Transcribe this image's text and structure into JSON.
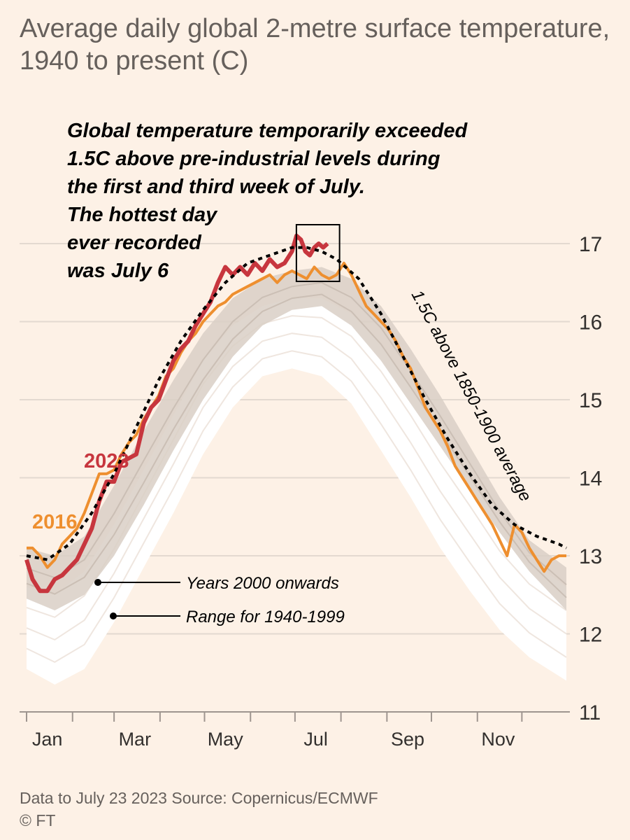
{
  "title": "Average daily global 2-metre surface temperature, 1940 to present (C)",
  "footer": {
    "source": "Data to July 23 2023   Source: Copernicus/ECMWF",
    "copyright": "© FT"
  },
  "colors": {
    "background": "#fdf1e6",
    "band_1940_1999": "#ffffff",
    "years_2000_onwards": "#d9cfc6",
    "series_2023": "#c7363e",
    "series_2016": "#ee8f2f",
    "threshold_line": "#000000",
    "gridline": "#e3d9d0"
  },
  "chart_data": {
    "type": "line",
    "title": "Average daily global 2-metre surface temperature, 1940 to present (C)",
    "ylabel": "",
    "xlabel": "",
    "ylim": [
      11,
      17.3
    ],
    "xlim_day_of_year": [
      1,
      365
    ],
    "grid": true,
    "y_axis_position": "right",
    "y_ticks": [
      "11",
      "12",
      "13",
      "14",
      "15",
      "16",
      "17"
    ],
    "x_ticks": [
      {
        "label": "Jan",
        "day": 15
      },
      {
        "label": "Mar",
        "day": 74
      },
      {
        "label": "May",
        "day": 135
      },
      {
        "label": "Jul",
        "day": 196
      },
      {
        "label": "Sep",
        "day": 258
      },
      {
        "label": "Nov",
        "day": 319
      }
    ],
    "month_start_days": [
      1,
      32,
      60,
      91,
      121,
      152,
      182,
      213,
      244,
      274,
      305,
      335
    ],
    "annotation": "Global temperature temporarily exceeded 1.5C above pre-industrial levels during the first and third week of July. The hottest day ever recorded was July 6",
    "highlight_box_days": [
      182,
      213
    ],
    "legend": [
      {
        "label": "Years 2000 onwards"
      },
      {
        "label": "Range for 1940-1999"
      }
    ],
    "threshold": {
      "name": "1.5C above 1850-1900 average",
      "x": [
        1,
        15,
        30,
        45,
        60,
        75,
        90,
        105,
        120,
        135,
        150,
        165,
        180,
        190,
        200,
        210,
        225,
        240,
        255,
        270,
        285,
        300,
        315,
        330,
        345,
        360,
        365
      ],
      "y": [
        13.0,
        12.95,
        13.15,
        13.55,
        14.05,
        14.65,
        15.25,
        15.75,
        16.15,
        16.5,
        16.75,
        16.85,
        16.95,
        16.95,
        16.9,
        16.8,
        16.55,
        16.1,
        15.55,
        15.0,
        14.5,
        14.05,
        13.65,
        13.4,
        13.25,
        13.15,
        13.1
      ]
    },
    "series": [
      {
        "name": "2023",
        "x": [
          1,
          5,
          10,
          15,
          20,
          25,
          30,
          35,
          40,
          45,
          50,
          55,
          60,
          65,
          70,
          75,
          80,
          85,
          90,
          95,
          100,
          105,
          110,
          115,
          120,
          125,
          130,
          135,
          140,
          145,
          150,
          155,
          160,
          165,
          170,
          175,
          180,
          183,
          186,
          189,
          192,
          195,
          198,
          201,
          204
        ],
        "y": [
          12.95,
          12.7,
          12.55,
          12.55,
          12.7,
          12.75,
          12.85,
          12.95,
          13.15,
          13.35,
          13.7,
          13.95,
          13.95,
          14.2,
          14.25,
          14.3,
          14.7,
          14.9,
          15.0,
          15.25,
          15.5,
          15.65,
          15.75,
          15.95,
          16.1,
          16.25,
          16.5,
          16.7,
          16.6,
          16.7,
          16.6,
          16.75,
          16.65,
          16.8,
          16.7,
          16.75,
          16.9,
          17.1,
          17.05,
          16.9,
          16.85,
          16.95,
          17.0,
          16.95,
          17.0
        ]
      },
      {
        "name": "2016",
        "x": [
          1,
          5,
          10,
          15,
          20,
          25,
          30,
          35,
          40,
          45,
          50,
          55,
          60,
          65,
          70,
          75,
          80,
          85,
          90,
          95,
          100,
          105,
          110,
          115,
          120,
          125,
          130,
          135,
          140,
          145,
          150,
          155,
          160,
          165,
          170,
          175,
          180,
          185,
          190,
          195,
          200,
          205,
          210,
          215,
          220,
          225,
          230,
          235,
          240,
          245,
          250,
          255,
          260,
          265,
          270,
          275,
          280,
          285,
          290,
          295,
          300,
          305,
          310,
          315,
          320,
          325,
          330,
          335,
          340,
          345,
          350,
          355,
          360,
          365
        ],
        "y": [
          13.1,
          13.1,
          13.0,
          12.85,
          12.95,
          13.15,
          13.25,
          13.35,
          13.55,
          13.8,
          14.05,
          14.05,
          14.1,
          14.3,
          14.45,
          14.55,
          14.75,
          14.9,
          15.05,
          15.3,
          15.4,
          15.6,
          15.75,
          15.85,
          16.0,
          16.1,
          16.2,
          16.25,
          16.35,
          16.4,
          16.45,
          16.5,
          16.55,
          16.6,
          16.5,
          16.6,
          16.65,
          16.6,
          16.55,
          16.7,
          16.6,
          16.55,
          16.6,
          16.75,
          16.6,
          16.4,
          16.2,
          16.1,
          16.0,
          15.9,
          15.75,
          15.55,
          15.4,
          15.15,
          14.9,
          14.75,
          14.6,
          14.4,
          14.15,
          14.0,
          13.85,
          13.7,
          13.55,
          13.4,
          13.2,
          13.0,
          13.4,
          13.3,
          13.1,
          12.95,
          12.8,
          12.95,
          13.0,
          13.0
        ]
      }
    ],
    "band_2000_onwards": {
      "x": [
        1,
        20,
        40,
        60,
        80,
        100,
        120,
        140,
        160,
        180,
        200,
        220,
        240,
        260,
        280,
        300,
        320,
        340,
        365
      ],
      "low": [
        12.45,
        12.3,
        12.5,
        13.0,
        13.65,
        14.35,
        15.0,
        15.55,
        15.95,
        16.15,
        16.2,
        15.95,
        15.5,
        14.95,
        14.4,
        13.85,
        13.3,
        12.8,
        12.3
      ],
      "high": [
        13.1,
        13.0,
        13.25,
        13.9,
        14.6,
        15.25,
        15.85,
        16.3,
        16.55,
        16.65,
        16.7,
        16.55,
        16.2,
        15.65,
        15.05,
        14.4,
        13.75,
        13.2,
        12.85
      ]
    },
    "band_1940_1999": {
      "x": [
        1,
        20,
        40,
        60,
        80,
        100,
        120,
        140,
        160,
        180,
        200,
        220,
        240,
        260,
        280,
        300,
        320,
        340,
        365
      ],
      "low": [
        11.55,
        11.35,
        11.55,
        12.15,
        12.85,
        13.55,
        14.3,
        14.9,
        15.3,
        15.4,
        15.3,
        14.95,
        14.35,
        13.75,
        13.1,
        12.55,
        12.05,
        11.7,
        11.4
      ],
      "high": [
        12.6,
        12.5,
        12.8,
        13.4,
        14.1,
        14.8,
        15.5,
        15.95,
        16.2,
        16.3,
        16.3,
        16.1,
        15.7,
        15.15,
        14.55,
        14.0,
        13.4,
        12.95,
        12.6
      ]
    }
  }
}
